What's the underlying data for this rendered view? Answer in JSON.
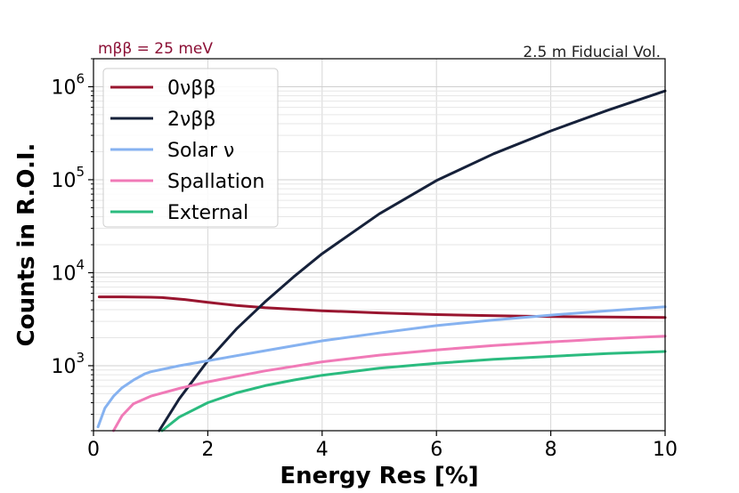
{
  "chart_data": {
    "type": "line",
    "xlabel": "Energy Res [%]",
    "ylabel": "Counts in R.O.I.",
    "xlim": [
      0,
      10
    ],
    "ylim": [
      200,
      2000000
    ],
    "yscale": "log",
    "grid": true,
    "legend_position": "top-left",
    "x_ticks": [
      "0",
      "2",
      "4",
      "6",
      "8",
      "10"
    ],
    "y_ticks": [
      {
        "base": "10",
        "exp": "3",
        "value": 1000
      },
      {
        "base": "10",
        "exp": "4",
        "value": 10000
      },
      {
        "base": "10",
        "exp": "5",
        "value": 100000
      },
      {
        "base": "10",
        "exp": "6",
        "value": 1000000
      }
    ],
    "annotations": {
      "left": "mββ = 25 meV",
      "left_color": "#8b0f35",
      "right": "2.5 m Fiducial Vol.",
      "right_color": "#222222"
    },
    "series": [
      {
        "name": "0νββ",
        "color": "#99152f",
        "x": [
          0.1,
          0.5,
          1.0,
          1.2,
          1.6,
          2.0,
          2.5,
          3.0,
          4.0,
          5.0,
          6.0,
          7.0,
          8.0,
          9.0,
          10.0
        ],
        "y": [
          5500,
          5500,
          5450,
          5400,
          5150,
          4800,
          4450,
          4200,
          3900,
          3700,
          3550,
          3450,
          3380,
          3340,
          3300
        ]
      },
      {
        "name": "2νββ",
        "color": "#16213a",
        "x": [
          1.15,
          1.5,
          2.0,
          2.5,
          3.0,
          3.5,
          4.0,
          5.0,
          6.0,
          7.0,
          8.0,
          9.0,
          10.0
        ],
        "y": [
          200,
          440,
          1130,
          2480,
          4850,
          9000,
          16000,
          43000,
          98000,
          190000,
          335000,
          560000,
          900000
        ]
      },
      {
        "name": "Solar ν",
        "color": "#86b2f0",
        "x": [
          0.08,
          0.2,
          0.35,
          0.5,
          0.7,
          0.9,
          1.0,
          1.5,
          2.0,
          3.0,
          4.0,
          5.0,
          6.0,
          7.0,
          8.0,
          9.0,
          10.0
        ],
        "y": [
          220,
          350,
          470,
          580,
          700,
          820,
          860,
          1000,
          1130,
          1450,
          1850,
          2250,
          2700,
          3100,
          3500,
          3900,
          4300
        ]
      },
      {
        "name": "Spallation",
        "color": "#f07ab7",
        "x": [
          0.35,
          0.5,
          0.7,
          1.0,
          1.5,
          2.0,
          3.0,
          4.0,
          5.0,
          6.0,
          7.0,
          8.0,
          9.0,
          10.0
        ],
        "y": [
          200,
          290,
          390,
          470,
          570,
          670,
          880,
          1100,
          1300,
          1480,
          1650,
          1800,
          1950,
          2080
        ]
      },
      {
        "name": "External",
        "color": "#2bbb7f",
        "x": [
          1.2,
          1.5,
          2.0,
          2.5,
          3.0,
          3.5,
          4.0,
          5.0,
          6.0,
          7.0,
          8.0,
          9.0,
          10.0
        ],
        "y": [
          200,
          280,
          400,
          510,
          610,
          700,
          790,
          940,
          1060,
          1170,
          1260,
          1350,
          1420
        ]
      }
    ]
  }
}
